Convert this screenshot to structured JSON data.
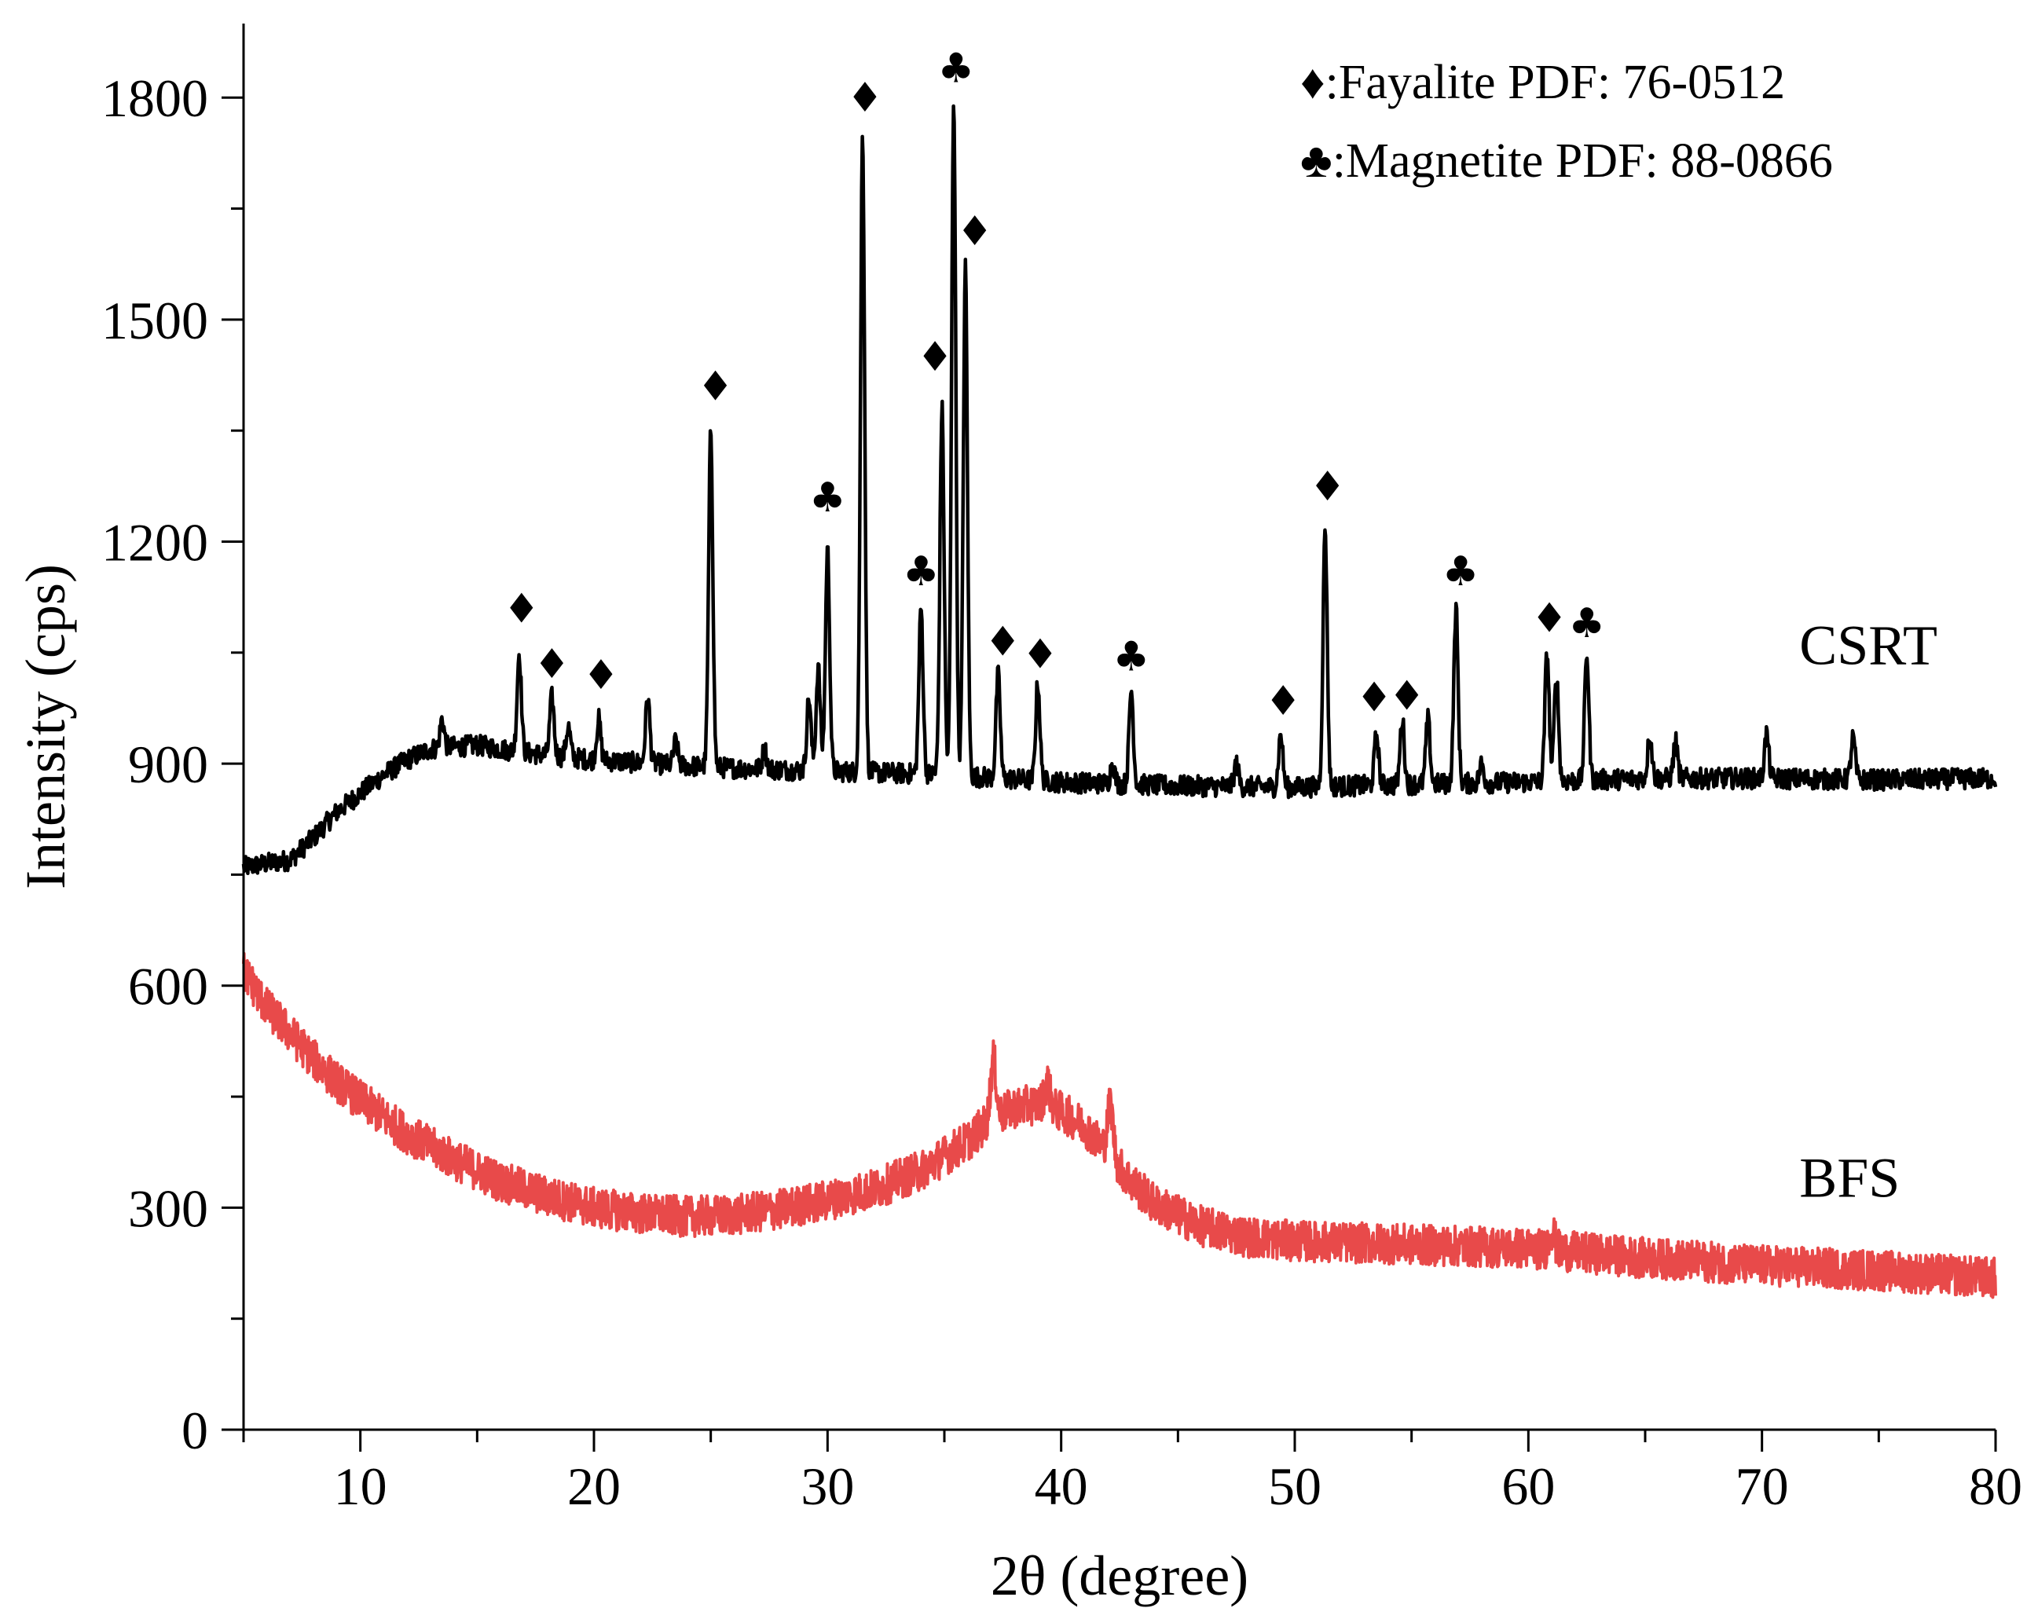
{
  "chart_data": {
    "type": "line",
    "title": "",
    "xlabel": "2θ (degree)",
    "ylabel": "Intensity (cps)",
    "xlim": [
      5,
      80
    ],
    "ylim": [
      0,
      1900
    ],
    "xticks": [
      10,
      20,
      30,
      40,
      50,
      60,
      70,
      80
    ],
    "yticks": [
      0,
      300,
      600,
      900,
      1200,
      1500,
      1800
    ],
    "xtick_labels": [
      "10",
      "20",
      "30",
      "40",
      "50",
      "60",
      "70",
      "80"
    ],
    "ytick_labels": [
      "0",
      "300",
      "600",
      "900",
      "1200",
      "1500",
      "1800"
    ],
    "legend": [
      {
        "symbol": "♦",
        "text": ":Fayalite PDF: 76-0512"
      },
      {
        "symbol": "♣",
        "text": ":Magnetite PDF: 88-0866"
      }
    ],
    "series": [
      {
        "name": "CSRT",
        "color": "#000000",
        "baseline": [
          [
            5,
            760
          ],
          [
            6,
            765
          ],
          [
            7,
            770
          ],
          [
            8,
            800
          ],
          [
            9,
            835
          ],
          [
            10,
            860
          ],
          [
            11,
            885
          ],
          [
            12,
            905
          ],
          [
            13,
            920
          ],
          [
            15,
            925
          ],
          [
            17,
            915
          ],
          [
            20,
            905
          ],
          [
            25,
            895
          ],
          [
            30,
            890
          ],
          [
            35,
            885
          ],
          [
            40,
            875
          ],
          [
            45,
            870
          ],
          [
            50,
            868
          ],
          [
            55,
            872
          ],
          [
            60,
            875
          ],
          [
            65,
            880
          ],
          [
            70,
            880
          ],
          [
            75,
            878
          ],
          [
            80,
            880
          ]
        ],
        "peaks": [
          [
            13.5,
            960
          ],
          [
            16.8,
            1050
          ],
          [
            18.2,
            990
          ],
          [
            18.9,
            950
          ],
          [
            20.2,
            960
          ],
          [
            22.3,
            990
          ],
          [
            23.5,
            930
          ],
          [
            25.0,
            1350
          ],
          [
            27.3,
            920
          ],
          [
            29.2,
            990
          ],
          [
            29.6,
            1030
          ],
          [
            30.0,
            1190
          ],
          [
            31.5,
            1750
          ],
          [
            34.0,
            1110
          ],
          [
            34.9,
            1380
          ],
          [
            35.4,
            1800
          ],
          [
            35.9,
            1570
          ],
          [
            37.3,
            1020
          ],
          [
            39.0,
            1010
          ],
          [
            42.2,
            900
          ],
          [
            43.0,
            1000
          ],
          [
            47.5,
            900
          ],
          [
            49.4,
            940
          ],
          [
            51.3,
            1220
          ],
          [
            53.5,
            940
          ],
          [
            54.6,
            960
          ],
          [
            55.7,
            960
          ],
          [
            56.9,
            1110
          ],
          [
            58.0,
            900
          ],
          [
            60.8,
            1050
          ],
          [
            61.2,
            1020
          ],
          [
            62.5,
            1050
          ],
          [
            65.2,
            940
          ],
          [
            66.3,
            930
          ],
          [
            70.2,
            940
          ],
          [
            73.9,
            935
          ]
        ]
      },
      {
        "name": "BFS",
        "color": "#e84a4a",
        "baseline": [
          [
            5,
            620
          ],
          [
            6,
            570
          ],
          [
            7,
            535
          ],
          [
            8,
            500
          ],
          [
            9,
            470
          ],
          [
            10,
            445
          ],
          [
            12,
            400
          ],
          [
            14,
            365
          ],
          [
            16,
            335
          ],
          [
            18,
            315
          ],
          [
            20,
            300
          ],
          [
            22,
            292
          ],
          [
            24,
            288
          ],
          [
            26,
            290
          ],
          [
            28,
            298
          ],
          [
            30,
            310
          ],
          [
            32,
            325
          ],
          [
            34,
            350
          ],
          [
            36,
            390
          ],
          [
            37,
            420
          ],
          [
            38,
            435
          ],
          [
            39,
            440
          ],
          [
            40,
            430
          ],
          [
            41,
            410
          ],
          [
            42,
            375
          ],
          [
            43,
            335
          ],
          [
            44,
            305
          ],
          [
            46,
            275
          ],
          [
            48,
            260
          ],
          [
            50,
            255
          ],
          [
            55,
            250
          ],
          [
            60,
            245
          ],
          [
            62,
            240
          ],
          [
            65,
            232
          ],
          [
            70,
            222
          ],
          [
            75,
            215
          ],
          [
            80,
            205
          ]
        ],
        "peaks": [
          [
            37.1,
            500
          ],
          [
            39.4,
            470
          ],
          [
            42.1,
            440
          ],
          [
            61.0,
            270
          ]
        ]
      }
    ],
    "annotations": [
      {
        "symbol": "♦",
        "x": 16.9,
        "y": 1110
      },
      {
        "symbol": "♦",
        "x": 18.2,
        "y": 1035
      },
      {
        "symbol": "♦",
        "x": 20.3,
        "y": 1020
      },
      {
        "symbol": "♦",
        "x": 25.2,
        "y": 1410
      },
      {
        "symbol": "♣",
        "x": 30.0,
        "y": 1260
      },
      {
        "symbol": "♦",
        "x": 31.6,
        "y": 1800
      },
      {
        "symbol": "♣",
        "x": 34.0,
        "y": 1160
      },
      {
        "symbol": "♦",
        "x": 34.6,
        "y": 1450
      },
      {
        "symbol": "♣",
        "x": 35.5,
        "y": 1840
      },
      {
        "symbol": "♦",
        "x": 36.3,
        "y": 1620
      },
      {
        "symbol": "♦",
        "x": 37.5,
        "y": 1065
      },
      {
        "symbol": "♦",
        "x": 39.1,
        "y": 1048
      },
      {
        "symbol": "♣",
        "x": 43.0,
        "y": 1045
      },
      {
        "symbol": "♦",
        "x": 49.5,
        "y": 985
      },
      {
        "symbol": "♦",
        "x": 51.4,
        "y": 1275
      },
      {
        "symbol": "♦",
        "x": 53.4,
        "y": 990
      },
      {
        "symbol": "♦",
        "x": 54.8,
        "y": 992
      },
      {
        "symbol": "♣",
        "x": 57.1,
        "y": 1160
      },
      {
        "symbol": "♦",
        "x": 60.9,
        "y": 1097
      },
      {
        "symbol": "♣",
        "x": 62.5,
        "y": 1090
      }
    ],
    "series_labels": [
      {
        "text": "CSRT",
        "x": 71.6,
        "y": 1060
      },
      {
        "text": "BFS",
        "x": 71.6,
        "y": 340
      }
    ]
  }
}
